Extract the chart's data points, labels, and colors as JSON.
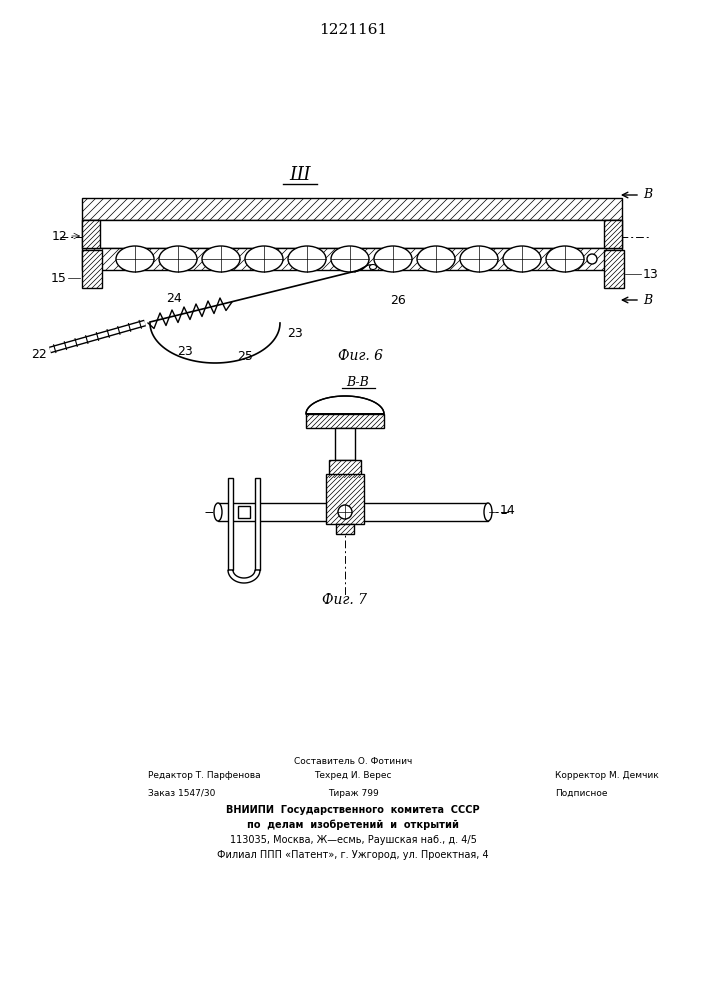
{
  "title": "1221161",
  "fig6_label": "Фиг. 6",
  "fig7_label": "Фиг. 7",
  "bg_color": "#ffffff",
  "line_color": "#000000"
}
